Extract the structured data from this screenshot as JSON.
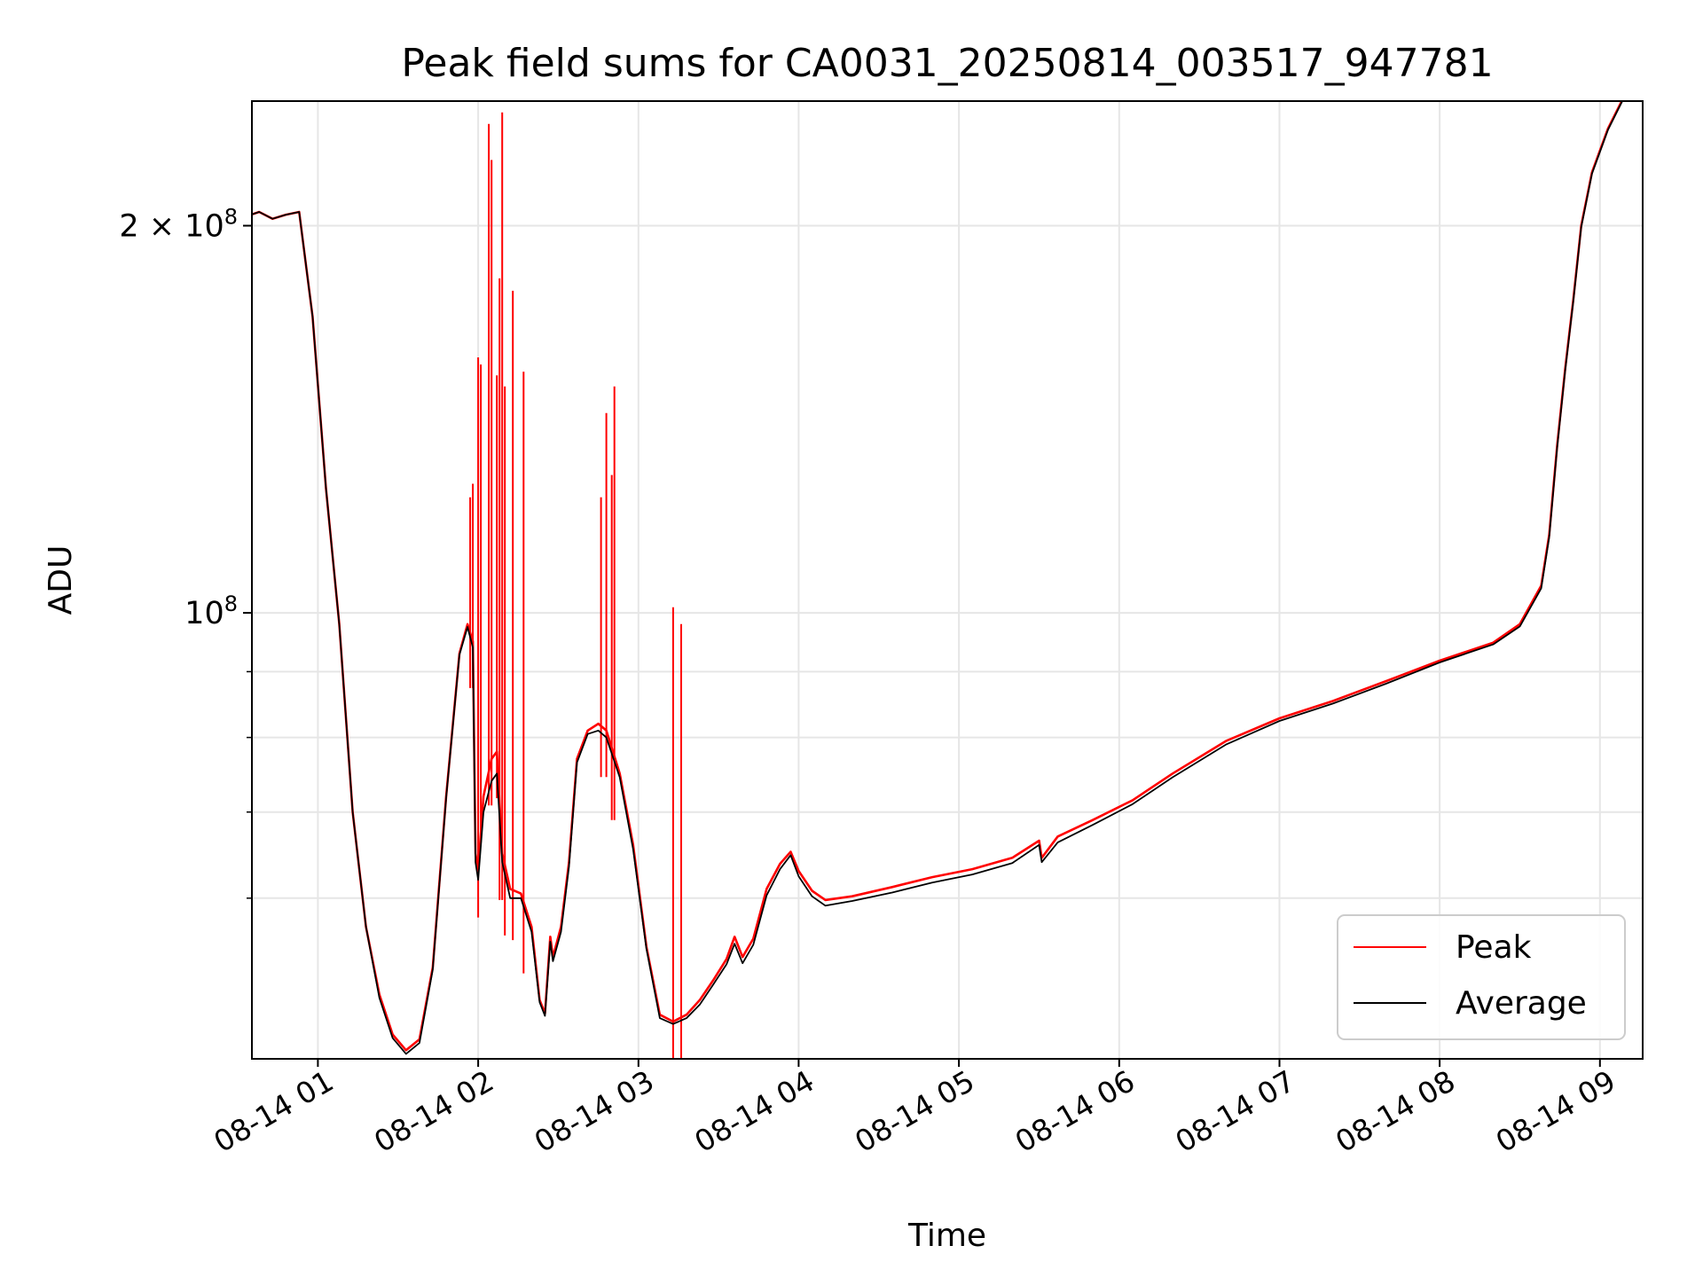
{
  "chart_data": {
    "type": "line",
    "title": "Peak field sums for CA0031_20250814_003517_947781",
    "xlabel": "Time",
    "ylabel": "ADU",
    "x_scale": "time",
    "y_scale": "log",
    "xlim": [
      "2025-08-14 00:35:17",
      "2025-08-14 09:16:00"
    ],
    "ylim": [
      45000000,
      250000000
    ],
    "x_ticks": [
      {
        "value": "2025-08-14 01:00",
        "label": "08-14 01"
      },
      {
        "value": "2025-08-14 02:00",
        "label": "08-14 02"
      },
      {
        "value": "2025-08-14 03:00",
        "label": "08-14 03"
      },
      {
        "value": "2025-08-14 04:00",
        "label": "08-14 04"
      },
      {
        "value": "2025-08-14 05:00",
        "label": "08-14 05"
      },
      {
        "value": "2025-08-14 06:00",
        "label": "08-14 06"
      },
      {
        "value": "2025-08-14 07:00",
        "label": "08-14 07"
      },
      {
        "value": "2025-08-14 08:00",
        "label": "08-14 08"
      },
      {
        "value": "2025-08-14 09:00",
        "label": "08-14 09"
      }
    ],
    "y_major_ticks": [
      {
        "value": 100000000,
        "base": "10",
        "exp": "8"
      },
      {
        "value": 200000000,
        "coef": "2 × ",
        "base": "10",
        "exp": "8"
      }
    ],
    "y_minor_ticks": [
      60000000,
      70000000,
      80000000,
      90000000
    ],
    "grid": true,
    "legend_position": "lower-right",
    "series": [
      {
        "name": "Peak",
        "color": "#ff0000",
        "points": [
          [
            "2025-08-14 00:35",
            204000000
          ],
          [
            "2025-08-14 00:38",
            205000000
          ],
          [
            "2025-08-14 00:43",
            202500000
          ],
          [
            "2025-08-14 00:48",
            204000000
          ],
          [
            "2025-08-14 00:53",
            205000000
          ],
          [
            "2025-08-14 00:58",
            170000000
          ],
          [
            "2025-08-14 01:03",
            125000000
          ],
          [
            "2025-08-14 01:08",
            98000000
          ],
          [
            "2025-08-14 01:13",
            70000000
          ],
          [
            "2025-08-14 01:18",
            57000000
          ],
          [
            "2025-08-14 01:23",
            50500000
          ],
          [
            "2025-08-14 01:28",
            47000000
          ],
          [
            "2025-08-14 01:33",
            45700000
          ],
          [
            "2025-08-14 01:38",
            46600000
          ],
          [
            "2025-08-14 01:43",
            53000000
          ],
          [
            "2025-08-14 01:48",
            72000000
          ],
          [
            "2025-08-14 01:53",
            93000000
          ],
          [
            "2025-08-14 01:56",
            98000000
          ],
          [
            "2025-08-14 01:58",
            95000000
          ],
          [
            "2025-08-14 01:59",
            65000000
          ],
          [
            "2025-08-14 02:00",
            63000000
          ],
          [
            "2025-08-14 02:02",
            72000000
          ],
          [
            "2025-08-14 02:05",
            77000000
          ],
          [
            "2025-08-14 02:07",
            78000000
          ],
          [
            "2025-08-14 02:09",
            65000000
          ],
          [
            "2025-08-14 02:12",
            61000000
          ],
          [
            "2025-08-14 02:16",
            60500000
          ],
          [
            "2025-08-14 02:20",
            57000000
          ],
          [
            "2025-08-14 02:23",
            50000000
          ],
          [
            "2025-08-14 02:25",
            48800000
          ],
          [
            "2025-08-14 02:27",
            56000000
          ],
          [
            "2025-08-14 02:28",
            54000000
          ],
          [
            "2025-08-14 02:31",
            57000000
          ],
          [
            "2025-08-14 02:34",
            64000000
          ],
          [
            "2025-08-14 02:37",
            77000000
          ],
          [
            "2025-08-14 02:41",
            81000000
          ],
          [
            "2025-08-14 02:45",
            82000000
          ],
          [
            "2025-08-14 02:48",
            81000000
          ],
          [
            "2025-08-14 02:53",
            75000000
          ],
          [
            "2025-08-14 02:58",
            66000000
          ],
          [
            "2025-08-14 03:03",
            55000000
          ],
          [
            "2025-08-14 03:08",
            48700000
          ],
          [
            "2025-08-14 03:13",
            48100000
          ],
          [
            "2025-08-14 03:18",
            48700000
          ],
          [
            "2025-08-14 03:23",
            50000000
          ],
          [
            "2025-08-14 03:28",
            51800000
          ],
          [
            "2025-08-14 03:33",
            53800000
          ],
          [
            "2025-08-14 03:36",
            56000000
          ],
          [
            "2025-08-14 03:39",
            54000000
          ],
          [
            "2025-08-14 03:43",
            55800000
          ],
          [
            "2025-08-14 03:48",
            61000000
          ],
          [
            "2025-08-14 03:53",
            63800000
          ],
          [
            "2025-08-14 03:57",
            65200000
          ],
          [
            "2025-08-14 04:00",
            63000000
          ],
          [
            "2025-08-14 04:05",
            60800000
          ],
          [
            "2025-08-14 04:10",
            59800000
          ],
          [
            "2025-08-14 04:20",
            60200000
          ],
          [
            "2025-08-14 04:35",
            61200000
          ],
          [
            "2025-08-14 04:50",
            62300000
          ],
          [
            "2025-08-14 05:05",
            63200000
          ],
          [
            "2025-08-14 05:20",
            64500000
          ],
          [
            "2025-08-14 05:30",
            66500000
          ],
          [
            "2025-08-14 05:31",
            64500000
          ],
          [
            "2025-08-14 05:37",
            67000000
          ],
          [
            "2025-08-14 05:50",
            69000000
          ],
          [
            "2025-08-14 06:05",
            71500000
          ],
          [
            "2025-08-14 06:20",
            75000000
          ],
          [
            "2025-08-14 06:40",
            79500000
          ],
          [
            "2025-08-14 07:00",
            82800000
          ],
          [
            "2025-08-14 07:20",
            85400000
          ],
          [
            "2025-08-14 07:40",
            88500000
          ],
          [
            "2025-08-14 08:00",
            91800000
          ],
          [
            "2025-08-14 08:20",
            94800000
          ],
          [
            "2025-08-14 08:30",
            98000000
          ],
          [
            "2025-08-14 08:38",
            105000000
          ],
          [
            "2025-08-14 08:41",
            115000000
          ],
          [
            "2025-08-14 08:44",
            135000000
          ],
          [
            "2025-08-14 08:47",
            155000000
          ],
          [
            "2025-08-14 08:50",
            175000000
          ],
          [
            "2025-08-14 08:53",
            200000000
          ],
          [
            "2025-08-14 08:57",
            220000000
          ],
          [
            "2025-08-14 09:03",
            238000000
          ],
          [
            "2025-08-14 09:09",
            252000000
          ]
        ],
        "spikes": [
          [
            "2025-08-14 01:57",
            123000000
          ],
          [
            "2025-08-14 01:58",
            126000000
          ],
          [
            "2025-08-14 02:00",
            158000000
          ],
          [
            "2025-08-14 02:01",
            156000000
          ],
          [
            "2025-08-14 02:04",
            240000000
          ],
          [
            "2025-08-14 02:05",
            225000000
          ],
          [
            "2025-08-14 02:07",
            153000000
          ],
          [
            "2025-08-14 02:08",
            182000000
          ],
          [
            "2025-08-14 02:09",
            245000000
          ],
          [
            "2025-08-14 02:10",
            150000000
          ],
          [
            "2025-08-14 02:13",
            178000000
          ],
          [
            "2025-08-14 02:17",
            154000000
          ],
          [
            "2025-08-14 02:46",
            123000000
          ],
          [
            "2025-08-14 02:48",
            143000000
          ],
          [
            "2025-08-14 02:50",
            128000000
          ],
          [
            "2025-08-14 02:51",
            150000000
          ],
          [
            "2025-08-14 03:13",
            101000000
          ],
          [
            "2025-08-14 03:16",
            98000000
          ]
        ]
      },
      {
        "name": "Average",
        "color": "#000000",
        "points": [
          [
            "2025-08-14 00:35",
            204000000
          ],
          [
            "2025-08-14 00:38",
            205000000
          ],
          [
            "2025-08-14 00:43",
            202500000
          ],
          [
            "2025-08-14 00:48",
            204000000
          ],
          [
            "2025-08-14 00:53",
            205000000
          ],
          [
            "2025-08-14 00:58",
            170000000
          ],
          [
            "2025-08-14 01:03",
            125000000
          ],
          [
            "2025-08-14 01:08",
            98000000
          ],
          [
            "2025-08-14 01:13",
            70000000
          ],
          [
            "2025-08-14 01:18",
            57000000
          ],
          [
            "2025-08-14 01:23",
            50200000
          ],
          [
            "2025-08-14 01:28",
            46700000
          ],
          [
            "2025-08-14 01:33",
            45400000
          ],
          [
            "2025-08-14 01:38",
            46300000
          ],
          [
            "2025-08-14 01:43",
            52800000
          ],
          [
            "2025-08-14 01:48",
            71800000
          ],
          [
            "2025-08-14 01:53",
            92800000
          ],
          [
            "2025-08-14 01:56",
            97500000
          ],
          [
            "2025-08-14 01:58",
            94000000
          ],
          [
            "2025-08-14 01:59",
            64000000
          ],
          [
            "2025-08-14 02:00",
            62000000
          ],
          [
            "2025-08-14 02:02",
            70000000
          ],
          [
            "2025-08-14 02:05",
            74000000
          ],
          [
            "2025-08-14 02:07",
            75000000
          ],
          [
            "2025-08-14 02:09",
            64000000
          ],
          [
            "2025-08-14 02:12",
            60000000
          ],
          [
            "2025-08-14 02:16",
            60000000
          ],
          [
            "2025-08-14 02:20",
            56500000
          ],
          [
            "2025-08-14 02:23",
            49800000
          ],
          [
            "2025-08-14 02:25",
            48600000
          ],
          [
            "2025-08-14 02:27",
            55500000
          ],
          [
            "2025-08-14 02:28",
            53600000
          ],
          [
            "2025-08-14 02:31",
            56500000
          ],
          [
            "2025-08-14 02:34",
            63500000
          ],
          [
            "2025-08-14 02:37",
            76500000
          ],
          [
            "2025-08-14 02:41",
            80500000
          ],
          [
            "2025-08-14 02:45",
            81000000
          ],
          [
            "2025-08-14 02:48",
            80000000
          ],
          [
            "2025-08-14 02:53",
            74500000
          ],
          [
            "2025-08-14 02:58",
            65500000
          ],
          [
            "2025-08-14 03:03",
            54800000
          ],
          [
            "2025-08-14 03:08",
            48400000
          ],
          [
            "2025-08-14 03:13",
            47900000
          ],
          [
            "2025-08-14 03:18",
            48400000
          ],
          [
            "2025-08-14 03:23",
            49600000
          ],
          [
            "2025-08-14 03:28",
            51400000
          ],
          [
            "2025-08-14 03:33",
            53300000
          ],
          [
            "2025-08-14 03:36",
            55300000
          ],
          [
            "2025-08-14 03:39",
            53400000
          ],
          [
            "2025-08-14 03:43",
            55200000
          ],
          [
            "2025-08-14 03:48",
            60300000
          ],
          [
            "2025-08-14 03:53",
            63200000
          ],
          [
            "2025-08-14 03:57",
            64800000
          ],
          [
            "2025-08-14 04:00",
            62400000
          ],
          [
            "2025-08-14 04:05",
            60200000
          ],
          [
            "2025-08-14 04:10",
            59200000
          ],
          [
            "2025-08-14 04:20",
            59700000
          ],
          [
            "2025-08-14 04:35",
            60600000
          ],
          [
            "2025-08-14 04:50",
            61700000
          ],
          [
            "2025-08-14 05:05",
            62600000
          ],
          [
            "2025-08-14 05:20",
            63900000
          ],
          [
            "2025-08-14 05:30",
            66000000
          ],
          [
            "2025-08-14 05:31",
            64000000
          ],
          [
            "2025-08-14 05:37",
            66300000
          ],
          [
            "2025-08-14 05:50",
            68400000
          ],
          [
            "2025-08-14 06:05",
            71000000
          ],
          [
            "2025-08-14 06:20",
            74500000
          ],
          [
            "2025-08-14 06:40",
            79000000
          ],
          [
            "2025-08-14 07:00",
            82400000
          ],
          [
            "2025-08-14 07:20",
            85000000
          ],
          [
            "2025-08-14 07:40",
            88100000
          ],
          [
            "2025-08-14 08:00",
            91500000
          ],
          [
            "2025-08-14 08:20",
            94500000
          ],
          [
            "2025-08-14 08:30",
            97600000
          ],
          [
            "2025-08-14 08:38",
            104500000
          ],
          [
            "2025-08-14 08:41",
            114500000
          ],
          [
            "2025-08-14 08:44",
            134500000
          ],
          [
            "2025-08-14 08:47",
            154500000
          ],
          [
            "2025-08-14 08:50",
            174500000
          ],
          [
            "2025-08-14 08:53",
            199500000
          ],
          [
            "2025-08-14 08:57",
            219500000
          ],
          [
            "2025-08-14 09:03",
            237500000
          ],
          [
            "2025-08-14 09:09",
            251500000
          ]
        ]
      }
    ]
  }
}
